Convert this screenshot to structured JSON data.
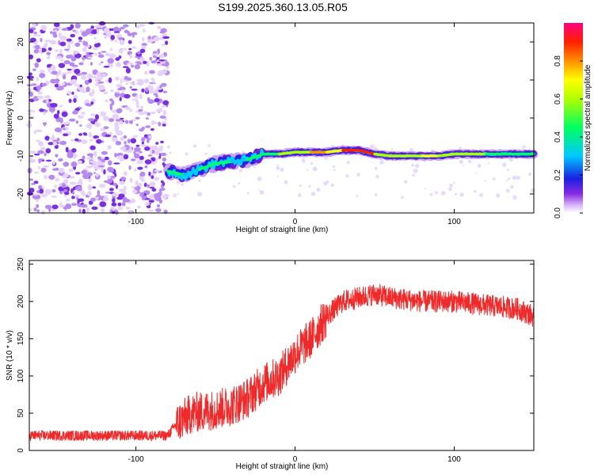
{
  "title": "S199.2025.360.13.05.R05",
  "spectrogram": {
    "xlabel": "Height of straight line (km)",
    "ylabel": "Frequency (Hz)",
    "xlim": [
      -167,
      150
    ],
    "ylim": [
      -25,
      25
    ],
    "xticks": [
      -100,
      0,
      100
    ],
    "yticks": [
      20,
      10,
      0,
      -10,
      -20
    ],
    "colorbar": {
      "label": "Normalized spectral amplitude",
      "ticks": [
        0.0,
        0.2,
        0.4,
        0.6,
        0.8
      ],
      "range": [
        0,
        1
      ]
    },
    "noise_region_end_km": -80,
    "ridge": {
      "x": [
        -80,
        -70,
        -60,
        -50,
        -40,
        -30,
        -20,
        -10,
        0,
        10,
        20,
        30,
        40,
        50,
        60,
        70,
        80,
        90,
        100,
        110,
        120,
        130,
        140,
        150
      ],
      "freq": [
        -14,
        -15,
        -13.5,
        -12,
        -11.5,
        -11,
        -9.5,
        -9.5,
        -9,
        -9,
        -9,
        -8.5,
        -8.5,
        -9.5,
        -10,
        -10,
        -10,
        -10,
        -9.5,
        -9.5,
        -9.5,
        -9.5,
        -9.5,
        -9.5
      ],
      "amplitude": [
        0.35,
        0.3,
        0.35,
        0.35,
        0.3,
        0.4,
        0.45,
        0.5,
        0.6,
        0.75,
        0.7,
        0.9,
        0.85,
        0.5,
        0.55,
        0.6,
        0.7,
        0.55,
        0.5,
        0.5,
        0.45,
        0.45,
        0.45,
        0.4
      ]
    }
  },
  "snr": {
    "xlabel": "Height of straight line (km)",
    "ylabel": "SNR (10 * v/v)",
    "xlim": [
      -167,
      150
    ],
    "ylim": [
      0,
      255
    ],
    "xticks": [
      -100,
      0,
      100
    ],
    "yticks": [
      0,
      50,
      100,
      150,
      200,
      250
    ],
    "line_color": "#ee2a2a",
    "trend": {
      "x": [
        -167,
        -80,
        -75,
        -65,
        -50,
        -40,
        -30,
        -20,
        -10,
        0,
        10,
        20,
        30,
        40,
        50,
        60,
        80,
        100,
        120,
        140,
        150
      ],
      "y": [
        20,
        20,
        35,
        50,
        55,
        60,
        70,
        90,
        100,
        130,
        150,
        180,
        200,
        205,
        210,
        205,
        200,
        200,
        195,
        190,
        180
      ]
    }
  }
}
